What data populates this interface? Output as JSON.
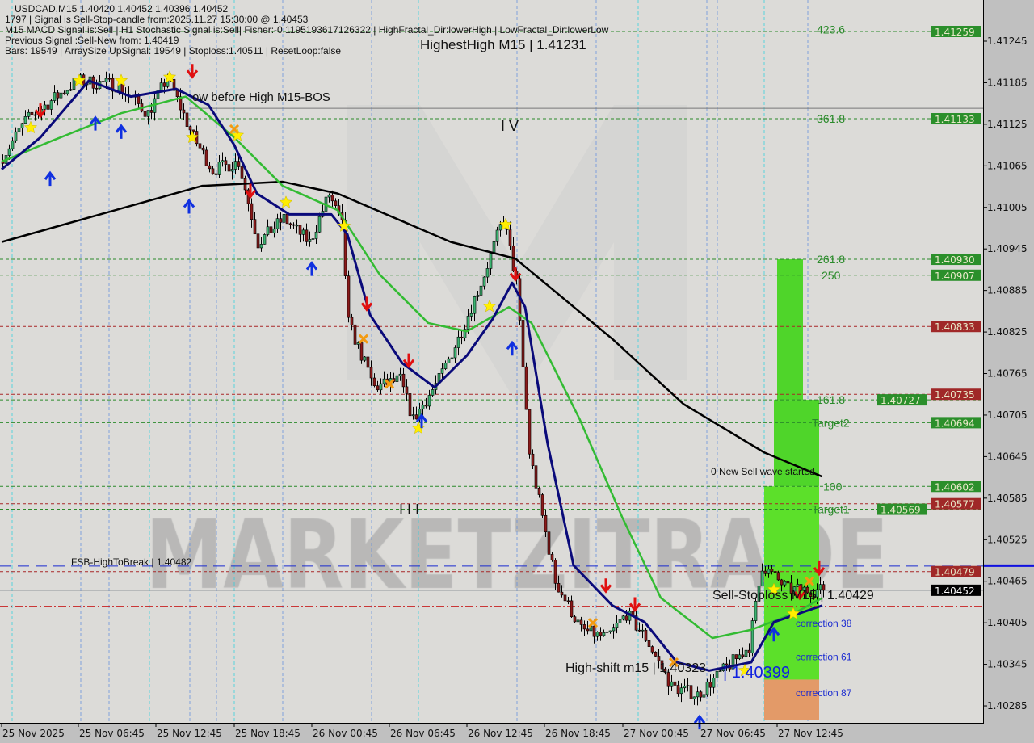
{
  "header": {
    "symbol_line": "USDCAD,M15  1.40420 1.40452 1.40396 1.40452",
    "signal_line": "1797 | Signal is Sell-Stop-candle from:2025.11.27 15:30:00 @ 1.40453",
    "indicator_line": "M15 MACD Signal is:Sell | H1 Stochastic Signal is:Sell| Fisher:-0.1195193617126322 | HighFractal_Dir:lowerHigh | LowFractal_Dir:lowerLow",
    "previous_line": "Previous Signal :Sell-New from: 1.40419",
    "bars_line": "Bars: 19549 | ArraySize UpSignal: 19549 | Stoploss:1.40511 | ResetLoop:false"
  },
  "annotations": {
    "highest_high": "HighestHigh   M15 | 1.41231",
    "low_before_high": "ow before High   M15-BOS",
    "wave_iv": "I V",
    "wave_iii": "I I I",
    "fsb": "FSB-HighToBreak | 1.40482",
    "new_sell_wave": "0 New Sell wave started",
    "sell_stoploss": "Sell-Stoploss M15 | 1.40429",
    "high_shift": "High-shift m15 | 1.40323",
    "high_shift_blue": "| 1.40399",
    "watermark": "MARKETZITRADE"
  },
  "fib_labels": [
    {
      "text": "423.6",
      "price": 1.41262
    },
    {
      "text": "361.8",
      "price": 1.41133
    },
    {
      "text": "261.8",
      "price": 1.4093
    },
    {
      "text": "250",
      "price": 1.40907
    },
    {
      "text": "161.8",
      "price": 1.40727
    },
    {
      "text": "Target2",
      "price": 1.40694
    },
    {
      "text": "100",
      "price": 1.40602
    },
    {
      "text": "Target1",
      "price": 1.40569
    },
    {
      "text": "correction 38",
      "price": 1.40405
    },
    {
      "text": "correction 61",
      "price": 1.40357
    },
    {
      "text": "correction 87",
      "price": 1.40305
    }
  ],
  "colors": {
    "bull": "#3cb371",
    "bear": "#8b1a1a",
    "ma_slow": "#000000",
    "ma_mid": "#33bb33",
    "ma_fast": "#0a0a7a",
    "plot_bg": "#dcdbd8",
    "axis_bg": "#c0c0c0",
    "level_green": "#2a8a2a",
    "level_red": "#a82828",
    "current": "#000000"
  },
  "chart_data": {
    "type": "candlestick",
    "symbol": "USDCAD",
    "timeframe": "M15",
    "ylim": [
      1.40265,
      1.41305
    ],
    "y_ticks": [
      "1.41245",
      "1.41185",
      "1.41125",
      "1.41065",
      "1.41005",
      "1.40945",
      "1.40885",
      "1.40825",
      "1.40765",
      "1.40705",
      "1.40645",
      "1.40585",
      "1.40525",
      "1.40465",
      "1.40405",
      "1.40345",
      "1.40285"
    ],
    "x_ticks": [
      "25 Nov 2025",
      "25 Nov 06:45",
      "25 Nov 12:45",
      "25 Nov 18:45",
      "26 Nov 00:45",
      "26 Nov 06:45",
      "26 Nov 12:45",
      "26 Nov 18:45",
      "27 Nov 00:45",
      "27 Nov 06:45",
      "27 Nov 12:45"
    ],
    "price_path": [
      [
        "2025-11-25 00:00",
        1.41071
      ],
      [
        "2025-11-25 02:00",
        1.4113
      ],
      [
        "2025-11-25 06:00",
        1.41188
      ],
      [
        "2025-11-25 09:00",
        1.41182
      ],
      [
        "2025-11-25 11:30",
        1.41141
      ],
      [
        "2025-11-25 13:00",
        1.41193
      ],
      [
        "2025-11-25 15:00",
        1.41106
      ],
      [
        "2025-11-25 16:30",
        1.41059
      ],
      [
        "2025-11-25 18:30",
        1.41071
      ],
      [
        "2025-11-25 20:00",
        1.40954
      ],
      [
        "2025-11-25 22:00",
        1.40989
      ],
      [
        "2025-11-26 00:00",
        1.40954
      ],
      [
        "2025-11-26 01:30",
        1.41024
      ],
      [
        "2025-11-26 02:30",
        1.40978
      ],
      [
        "2025-11-26 03:00",
        1.40838
      ],
      [
        "2025-11-26 05:00",
        1.40745
      ],
      [
        "2025-11-26 07:00",
        1.40756
      ],
      [
        "2025-11-26 08:00",
        1.40698
      ],
      [
        "2025-11-26 10:00",
        1.40756
      ],
      [
        "2025-11-26 11:30",
        1.40815
      ],
      [
        "2025-11-26 13:30",
        1.40908
      ],
      [
        "2025-11-26 15:00",
        1.4099
      ],
      [
        "2025-11-26 16:00",
        1.40896
      ],
      [
        "2025-11-26 17:00",
        1.40651
      ],
      [
        "2025-11-26 19:00",
        1.40465
      ],
      [
        "2025-11-26 21:00",
        1.40395
      ],
      [
        "2025-11-26 23:00",
        1.40383
      ],
      [
        "2025-11-27 00:30",
        1.40418
      ],
      [
        "2025-11-27 02:00",
        1.40383
      ],
      [
        "2025-11-27 04:00",
        1.40313
      ],
      [
        "2025-11-27 06:00",
        1.40301
      ],
      [
        "2025-11-27 08:00",
        1.40336
      ],
      [
        "2025-11-27 10:00",
        1.40371
      ],
      [
        "2025-11-27 11:00",
        1.40488
      ],
      [
        "2025-11-27 13:00",
        1.40453
      ],
      [
        "2025-11-27 15:30",
        1.40452
      ]
    ],
    "ma_slow": [
      [
        "2025-11-25 00:00",
        1.40955
      ],
      [
        "2025-11-25 15:30",
        1.41036
      ],
      [
        "2025-11-25 21:45",
        1.41042
      ],
      [
        "2025-11-26 02:00",
        1.41025
      ],
      [
        "2025-11-26 10:45",
        1.40955
      ],
      [
        "2025-11-26 15:45",
        1.40931
      ],
      [
        "2025-11-26 23:15",
        1.40815
      ],
      [
        "2025-11-27 04:45",
        1.40721
      ],
      [
        "2025-11-27 11:00",
        1.40651
      ],
      [
        "2025-11-27 15:30",
        1.40616
      ]
    ],
    "ma_mid": [
      [
        "2025-11-25 00:00",
        1.41071
      ],
      [
        "2025-11-25 03:45",
        1.411
      ],
      [
        "2025-11-25 09:15",
        1.41141
      ],
      [
        "2025-11-25 14:15",
        1.41165
      ],
      [
        "2025-11-25 18:00",
        1.41106
      ],
      [
        "2025-11-25 21:45",
        1.41036
      ],
      [
        "2025-11-26 02:00",
        1.41001
      ],
      [
        "2025-11-26 05:15",
        1.40908
      ],
      [
        "2025-11-26 09:00",
        1.40838
      ],
      [
        "2025-11-26 12:00",
        1.40826
      ],
      [
        "2025-11-26 15:15",
        1.40861
      ],
      [
        "2025-11-26 17:00",
        1.40838
      ],
      [
        "2025-11-26 20:45",
        1.40698
      ],
      [
        "2025-11-26 24:00",
        1.40558
      ],
      [
        "2025-11-27 03:00",
        1.40441
      ],
      [
        "2025-11-27 07:00",
        1.40383
      ],
      [
        "2025-11-27 10:00",
        1.40395
      ],
      [
        "2025-11-27 13:15",
        1.40418
      ],
      [
        "2025-11-27 15:30",
        1.40441
      ]
    ],
    "ma_fast": [
      [
        "2025-11-25 00:00",
        1.4106
      ],
      [
        "2025-11-25 03:00",
        1.41106
      ],
      [
        "2025-11-25 06:45",
        1.41188
      ],
      [
        "2025-11-25 10:00",
        1.41165
      ],
      [
        "2025-11-25 13:30",
        1.41176
      ],
      [
        "2025-11-25 16:00",
        1.41153
      ],
      [
        "2025-11-25 18:00",
        1.41095
      ],
      [
        "2025-11-25 19:45",
        1.41025
      ],
      [
        "2025-11-25 22:15",
        1.40995
      ],
      [
        "2025-11-26 01:30",
        1.40995
      ],
      [
        "2025-11-26 02:45",
        1.40966
      ],
      [
        "2025-11-26 04:30",
        1.4085
      ],
      [
        "2025-11-26 07:00",
        1.4078
      ],
      [
        "2025-11-26 09:30",
        1.40745
      ],
      [
        "2025-11-26 12:00",
        1.40791
      ],
      [
        "2025-11-26 14:00",
        1.40844
      ],
      [
        "2025-11-26 15:30",
        1.40896
      ],
      [
        "2025-11-26 16:30",
        1.40861
      ],
      [
        "2025-11-26 18:15",
        1.40663
      ],
      [
        "2025-11-26 20:15",
        1.40488
      ],
      [
        "2025-11-26 23:15",
        1.4043
      ],
      [
        "2025-11-27 01:45",
        1.40406
      ],
      [
        "2025-11-27 04:15",
        1.40348
      ],
      [
        "2025-11-27 06:45",
        1.40336
      ],
      [
        "2025-11-27 10:00",
        1.40348
      ],
      [
        "2025-11-27 11:45",
        1.40406
      ],
      [
        "2025-11-27 15:30",
        1.4043
      ]
    ],
    "levels": [
      {
        "price": 1.41259,
        "label": "1.41259",
        "kind": "green"
      },
      {
        "price": 1.41148,
        "label": "",
        "kind": "gray"
      },
      {
        "price": 1.41133,
        "label": "1.41133",
        "kind": "green"
      },
      {
        "price": 1.4093,
        "label": "1.40930",
        "kind": "green"
      },
      {
        "price": 1.40907,
        "label": "1.40907",
        "kind": "green"
      },
      {
        "price": 1.40833,
        "label": "1.40833",
        "kind": "red"
      },
      {
        "price": 1.40735,
        "label": "1.40735",
        "kind": "red"
      },
      {
        "price": 1.40727,
        "label": "1.40727",
        "kind": "green"
      },
      {
        "price": 1.40694,
        "label": "1.40694",
        "kind": "green"
      },
      {
        "price": 1.40602,
        "label": "1.40602",
        "kind": "green"
      },
      {
        "price": 1.40577,
        "label": "1.40577",
        "kind": "red"
      },
      {
        "price": 1.40569,
        "label": "1.40569",
        "kind": "green"
      },
      {
        "price": 1.40487,
        "label": "",
        "kind": "blue"
      },
      {
        "price": 1.40479,
        "label": "1.40479",
        "kind": "red"
      },
      {
        "price": 1.40452,
        "label": "1.40452",
        "kind": "current"
      },
      {
        "price": 1.40429,
        "label": "",
        "kind": "reddash"
      }
    ],
    "signals": [
      {
        "t": "2025-11-25 02:15",
        "p": 1.4112,
        "type": "star"
      },
      {
        "t": "2025-11-25 06:00",
        "p": 1.41188,
        "type": "star"
      },
      {
        "t": "2025-11-25 09:15",
        "p": 1.41188,
        "type": "star"
      },
      {
        "t": "2025-11-25 13:00",
        "p": 1.41193,
        "type": "star"
      },
      {
        "t": "2025-11-25 14:45",
        "p": 1.41106,
        "type": "star"
      },
      {
        "t": "2025-11-25 18:15",
        "p": 1.41109,
        "type": "star"
      },
      {
        "t": "2025-11-25 22:00",
        "p": 1.41012,
        "type": "star"
      },
      {
        "t": "2025-11-26 02:30",
        "p": 1.40978,
        "type": "star"
      },
      {
        "t": "2025-11-26 08:15",
        "p": 1.40686,
        "type": "star"
      },
      {
        "t": "2025-11-26 13:45",
        "p": 1.40862,
        "type": "star"
      },
      {
        "t": "2025-11-26 15:00",
        "p": 1.4098,
        "type": "star"
      },
      {
        "t": "2025-11-27 09:30",
        "p": 1.40336,
        "type": "star"
      },
      {
        "t": "2025-11-27 11:45",
        "p": 1.40453,
        "type": "star"
      },
      {
        "t": "2025-11-27 13:15",
        "p": 1.40418,
        "type": "star"
      },
      {
        "t": "2025-11-25 03:00",
        "p": 1.41141,
        "type": "down"
      },
      {
        "t": "2025-11-25 14:45",
        "p": 1.41198,
        "type": "down"
      },
      {
        "t": "2025-11-25 19:15",
        "p": 1.41025,
        "type": "down"
      },
      {
        "t": "2025-11-26 04:15",
        "p": 1.40862,
        "type": "down"
      },
      {
        "t": "2025-11-26 07:30",
        "p": 1.4078,
        "type": "down"
      },
      {
        "t": "2025-11-26 15:45",
        "p": 1.40905,
        "type": "down"
      },
      {
        "t": "2025-11-26 22:45",
        "p": 1.40455,
        "type": "down"
      },
      {
        "t": "2025-11-27 01:00",
        "p": 1.40428,
        "type": "down"
      },
      {
        "t": "2025-11-27 13:45",
        "p": 1.40445,
        "type": "down"
      },
      {
        "t": "2025-11-27 15:15",
        "p": 1.4048,
        "type": "down"
      },
      {
        "t": "2025-11-25 03:45",
        "p": 1.4105,
        "type": "up"
      },
      {
        "t": "2025-11-25 07:15",
        "p": 1.4113,
        "type": "up"
      },
      {
        "t": "2025-11-25 09:15",
        "p": 1.41118,
        "type": "up"
      },
      {
        "t": "2025-11-25 14:30",
        "p": 1.4101,
        "type": "up"
      },
      {
        "t": "2025-11-25 24:00",
        "p": 1.4092,
        "type": "up"
      },
      {
        "t": "2025-11-26 08:30",
        "p": 1.407,
        "type": "up"
      },
      {
        "t": "2025-11-26 15:30",
        "p": 1.40805,
        "type": "up"
      },
      {
        "t": "2025-11-27 06:00",
        "p": 1.40265,
        "type": "up"
      },
      {
        "t": "2025-11-27 11:45",
        "p": 1.40392,
        "type": "up"
      },
      {
        "t": "2025-11-25 18:00",
        "p": 1.41118,
        "type": "cross"
      },
      {
        "t": "2025-11-26 04:00",
        "p": 1.40815,
        "type": "cross"
      },
      {
        "t": "2025-11-26 06:00",
        "p": 1.4075,
        "type": "cross"
      },
      {
        "t": "2025-11-26 21:45",
        "p": 1.40405,
        "type": "cross"
      },
      {
        "t": "2025-11-27 04:00",
        "p": 1.40348,
        "type": "cross"
      },
      {
        "t": "2025-11-27 14:30",
        "p": 1.40465,
        "type": "cross"
      }
    ],
    "zones": [
      {
        "from": "2025-11-27 12:00",
        "to": "2025-11-27 14:00",
        "top": 1.4093,
        "bottom": 1.40727,
        "color": "#4fd52a"
      },
      {
        "from": "2025-11-27 11:45",
        "to": "2025-11-27 15:15",
        "top": 1.40727,
        "bottom": 1.40602,
        "color": "#4fd52a"
      },
      {
        "from": "2025-11-27 11:00",
        "to": "2025-11-27 15:15",
        "top": 1.40602,
        "bottom": 1.40323,
        "color": "#5ce02a"
      },
      {
        "from": "2025-11-27 11:00",
        "to": "2025-11-27 15:15",
        "top": 1.40323,
        "bottom": 1.40265,
        "color": "#e39a68"
      }
    ]
  }
}
